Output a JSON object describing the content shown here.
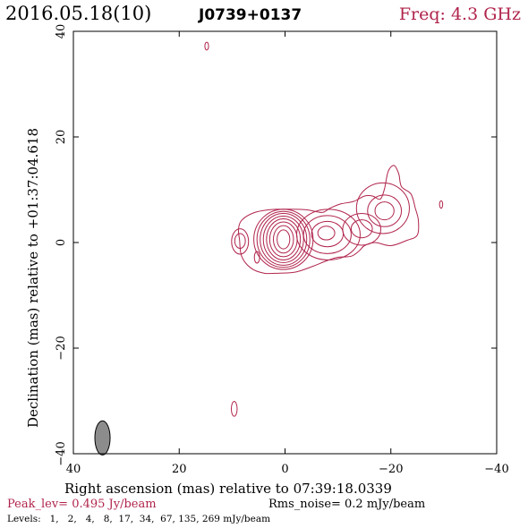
{
  "header": {
    "date_epoch": "2016.05.18(10)",
    "source": "J0739+0137",
    "freq": "Freq: 4.3 GHz"
  },
  "footer": {
    "peak": "Peak_lev=  0.495 Jy/beam",
    "rms": "Rms_noise=  0.2 mJy/beam",
    "levels": "Levels:   1,   2,   4,   8,  17,  34,  67, 135, 269 mJy/beam"
  },
  "colors": {
    "contour": "#b0244c",
    "frame": "#000000",
    "beam_fill": "#8c8c8c"
  },
  "chart_data": {
    "type": "contour",
    "xlabel": "Right ascension (mas) relative to 07:39:18.0339",
    "ylabel": "Declination (mas) relative to +01:37:04.618",
    "xlim": [
      40,
      -40
    ],
    "ylim": [
      -40,
      40
    ],
    "xticks": [
      40,
      20,
      0,
      -20,
      -40
    ],
    "yticks": [
      -40,
      -20,
      0,
      20,
      40
    ],
    "xtick_labels": [
      "40",
      "20",
      "0",
      "−20",
      "−40"
    ],
    "ytick_labels": [
      "−40",
      "−20",
      "0",
      "20",
      "40"
    ],
    "contour_levels_mJy": [
      1,
      2,
      4,
      8,
      17,
      34,
      67,
      135,
      269
    ],
    "peak_Jy_per_beam": 0.495,
    "rms_mJy_per_beam": 0.2,
    "beam": {
      "x": 34.5,
      "y": -37,
      "major_mas": 3.8,
      "minor_mas": 1.8,
      "pa_deg": 0
    },
    "core": {
      "x": 0.3,
      "y": 0.6,
      "contours": [
        {
          "rx": 1.2,
          "ry": 1.8
        },
        {
          "rx": 1.9,
          "ry": 2.6
        },
        {
          "rx": 2.6,
          "ry": 3.3
        },
        {
          "rx": 3.2,
          "ry": 3.9
        },
        {
          "rx": 3.8,
          "ry": 4.4
        },
        {
          "rx": 4.4,
          "ry": 4.9
        },
        {
          "rx": 5.0,
          "ry": 5.3
        },
        {
          "rx": 5.6,
          "ry": 5.7
        }
      ]
    },
    "jet_outer": [
      [
        8.6,
        0.5
      ],
      [
        8.8,
        2.5
      ],
      [
        8.2,
        4.2
      ],
      [
        6.0,
        5.6
      ],
      [
        3.0,
        6.2
      ],
      [
        -0.5,
        6.3
      ],
      [
        -4.0,
        6.2
      ],
      [
        -7.0,
        5.7
      ],
      [
        -8.5,
        6.5
      ],
      [
        -10.5,
        7.3
      ],
      [
        -13.0,
        7.8
      ],
      [
        -15.0,
        8.8
      ],
      [
        -16.6,
        8.8
      ],
      [
        -18.0,
        8.2
      ],
      [
        -18.8,
        10.2
      ],
      [
        -19.5,
        13.5
      ],
      [
        -20.6,
        14.6
      ],
      [
        -21.5,
        13.0
      ],
      [
        -22.0,
        10.6
      ],
      [
        -23.8,
        9.2
      ],
      [
        -24.6,
        6.6
      ],
      [
        -25.2,
        4.2
      ],
      [
        -25.0,
        1.4
      ],
      [
        -23.0,
        0.4
      ],
      [
        -20.0,
        -0.6
      ],
      [
        -17.0,
        0.0
      ],
      [
        -15.0,
        -0.6
      ],
      [
        -14.0,
        -1.6
      ],
      [
        -12.5,
        -2.6
      ],
      [
        -10.0,
        -2.8
      ],
      [
        -8.0,
        -3.4
      ],
      [
        -5.0,
        -4.6
      ],
      [
        -2.0,
        -5.6
      ],
      [
        1.0,
        -5.8
      ],
      [
        4.0,
        -5.8
      ],
      [
        6.5,
        -4.8
      ],
      [
        8.2,
        -2.6
      ]
    ],
    "jet_inner": [
      {
        "x": -8.2,
        "y": 1.5,
        "rx": 6.0,
        "ry": 4.8
      },
      {
        "x": -8.0,
        "y": 1.5,
        "rx": 4.5,
        "ry": 3.6
      },
      {
        "x": -8.0,
        "y": 1.6,
        "rx": 3.0,
        "ry": 2.4
      },
      {
        "x": -7.8,
        "y": 1.8,
        "rx": 1.6,
        "ry": 1.3
      },
      {
        "x": -14.5,
        "y": 2.5,
        "rx": 3.6,
        "ry": 3.0
      },
      {
        "x": -14.5,
        "y": 2.6,
        "rx": 2.0,
        "ry": 1.7
      },
      {
        "x": -18.5,
        "y": 6.5,
        "rx": 5.0,
        "ry": 4.8
      },
      {
        "x": -18.8,
        "y": 6.0,
        "rx": 3.2,
        "ry": 3.0
      },
      {
        "x": -18.8,
        "y": 6.0,
        "rx": 1.8,
        "ry": 1.7
      }
    ],
    "components": [
      {
        "x": 8.5,
        "y": 0.2,
        "rx": 1.6,
        "ry": 2.4
      },
      {
        "x": 8.5,
        "y": 0.3,
        "rx": 1.0,
        "ry": 1.4
      },
      {
        "x": 5.3,
        "y": -2.8,
        "rx": 0.5,
        "ry": 1.1
      },
      {
        "x": 14.8,
        "y": 37.2,
        "rx": 0.35,
        "ry": 0.75
      },
      {
        "x": 9.6,
        "y": -31.5,
        "rx": 0.55,
        "ry": 1.4
      },
      {
        "x": -29.5,
        "y": 7.2,
        "rx": 0.3,
        "ry": 0.7
      }
    ]
  }
}
